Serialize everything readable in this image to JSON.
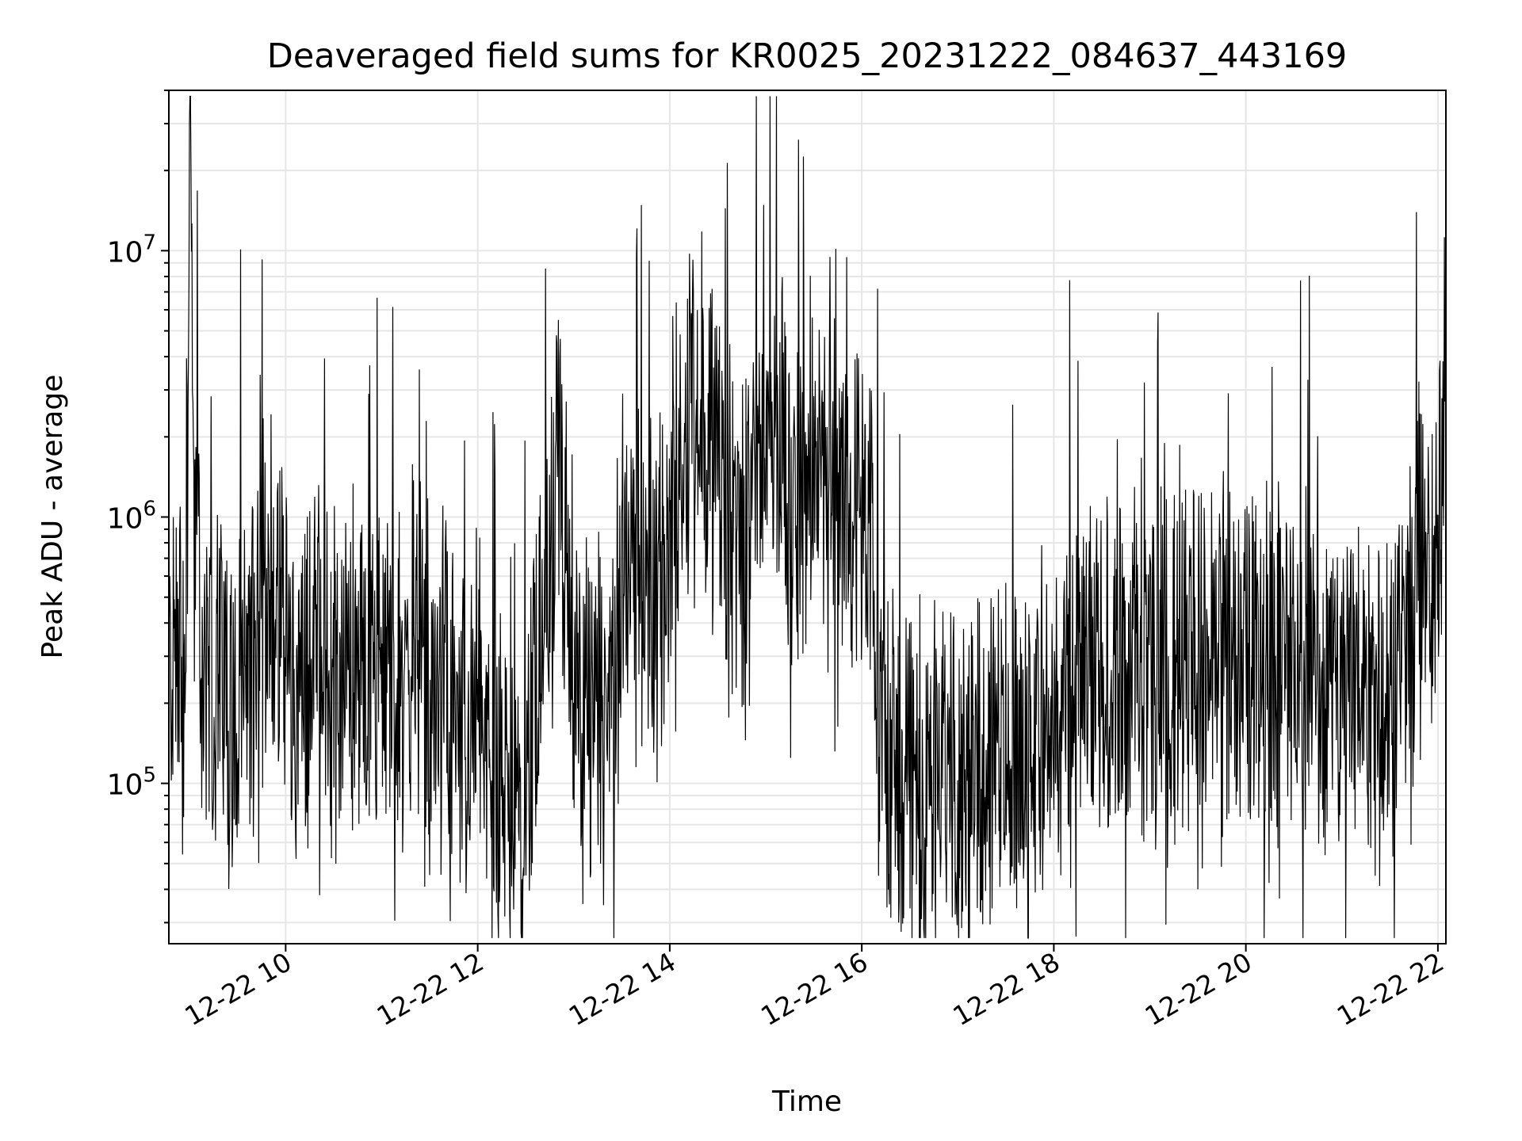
{
  "chart_data": {
    "type": "line",
    "title": "Deaveraged field sums for KR0025_20231222_084637_443169",
    "xlabel": "Time",
    "ylabel": "Peak ADU - average",
    "yscale": "log",
    "x_range": [
      "2023-12-22 08:47",
      "2023-12-22 22:05"
    ],
    "ylim": [
      25000,
      40000000
    ],
    "grid": true,
    "grid_minor_y": true,
    "line_color": "#000000",
    "x_ticks": [
      {
        "label": "12-22 10",
        "time": "2023-12-22 10:00"
      },
      {
        "label": "12-22 12",
        "time": "2023-12-22 12:00"
      },
      {
        "label": "12-22 14",
        "time": "2023-12-22 14:00"
      },
      {
        "label": "12-22 16",
        "time": "2023-12-22 16:00"
      },
      {
        "label": "12-22 18",
        "time": "2023-12-22 18:00"
      },
      {
        "label": "12-22 20",
        "time": "2023-12-22 20:00"
      },
      {
        "label": "12-22 22",
        "time": "2023-12-22 22:00"
      }
    ],
    "y_ticks": [
      {
        "base": "10",
        "exp": "5",
        "value": 100000
      },
      {
        "base": "10",
        "exp": "6",
        "value": 1000000
      },
      {
        "base": "10",
        "exp": "7",
        "value": 10000000
      }
    ],
    "series": [
      {
        "style": "dense noisy line (approximate envelope of the depicted trace)",
        "points": [
          [
            "2023-12-22 08:47",
            250000
          ],
          [
            "2023-12-22 08:53",
            400000
          ],
          [
            "2023-12-22 08:57",
            160000
          ],
          [
            "2023-12-22 09:00",
            30000000
          ],
          [
            "2023-12-22 09:03",
            800000
          ],
          [
            "2023-12-22 09:10",
            200000
          ],
          [
            "2023-12-22 09:20",
            300000
          ],
          [
            "2023-12-22 09:30",
            150000
          ],
          [
            "2023-12-22 09:40",
            350000
          ],
          [
            "2023-12-22 09:50",
            600000
          ],
          [
            "2023-12-22 10:00",
            250000
          ],
          [
            "2023-12-22 10:10",
            200000
          ],
          [
            "2023-12-22 10:20",
            400000
          ],
          [
            "2023-12-22 10:30",
            180000
          ],
          [
            "2023-12-22 10:40",
            300000
          ],
          [
            "2023-12-22 10:50",
            220000
          ],
          [
            "2023-12-22 11:00",
            280000
          ],
          [
            "2023-12-22 11:10",
            200000
          ],
          [
            "2023-12-22 11:20",
            300000
          ],
          [
            "2023-12-22 11:30",
            150000
          ],
          [
            "2023-12-22 11:40",
            250000
          ],
          [
            "2023-12-22 11:50",
            130000
          ],
          [
            "2023-12-22 12:00",
            200000
          ],
          [
            "2023-12-22 12:10",
            100000
          ],
          [
            "2023-12-22 12:20",
            80000
          ],
          [
            "2023-12-22 12:30",
            90000
          ],
          [
            "2023-12-22 12:36",
            300000
          ],
          [
            "2023-12-22 12:45",
            700000
          ],
          [
            "2023-12-22 12:50",
            1800000
          ],
          [
            "2023-12-22 12:55",
            400000
          ],
          [
            "2023-12-22 13:05",
            150000
          ],
          [
            "2023-12-22 13:15",
            200000
          ],
          [
            "2023-12-22 13:20",
            120000
          ],
          [
            "2023-12-22 13:28",
            400000
          ],
          [
            "2023-12-22 13:35",
            1000000
          ],
          [
            "2023-12-22 13:45",
            600000
          ],
          [
            "2023-12-22 13:55",
            400000
          ],
          [
            "2023-12-22 14:05",
            1500000
          ],
          [
            "2023-12-22 14:15",
            3000000
          ],
          [
            "2023-12-22 14:25",
            2000000
          ],
          [
            "2023-12-22 14:35",
            1000000
          ],
          [
            "2023-12-22 14:45",
            700000
          ],
          [
            "2023-12-22 14:55",
            1500000
          ],
          [
            "2023-12-22 15:05",
            2500000
          ],
          [
            "2023-12-22 15:15",
            1200000
          ],
          [
            "2023-12-22 15:25",
            900000
          ],
          [
            "2023-12-22 15:35",
            2000000
          ],
          [
            "2023-12-22 15:45",
            1500000
          ],
          [
            "2023-12-22 15:55",
            1000000
          ],
          [
            "2023-12-22 16:05",
            700000
          ],
          [
            "2023-12-22 16:12",
            150000
          ],
          [
            "2023-12-22 16:25",
            120000
          ],
          [
            "2023-12-22 16:40",
            100000
          ],
          [
            "2023-12-22 16:55",
            130000
          ],
          [
            "2023-12-22 17:10",
            110000
          ],
          [
            "2023-12-22 17:25",
            140000
          ],
          [
            "2023-12-22 17:40",
            130000
          ],
          [
            "2023-12-22 17:55",
            160000
          ],
          [
            "2023-12-22 18:10",
            200000
          ],
          [
            "2023-12-22 18:25",
            250000
          ],
          [
            "2023-12-22 18:40",
            280000
          ],
          [
            "2023-12-22 18:55",
            260000
          ],
          [
            "2023-12-22 19:10",
            250000
          ],
          [
            "2023-12-22 19:25",
            300000
          ],
          [
            "2023-12-22 19:40",
            280000
          ],
          [
            "2023-12-22 19:55",
            320000
          ],
          [
            "2023-12-22 20:10",
            300000
          ],
          [
            "2023-12-22 20:25",
            280000
          ],
          [
            "2023-12-22 20:40",
            260000
          ],
          [
            "2023-12-22 20:55",
            240000
          ],
          [
            "2023-12-22 21:10",
            260000
          ],
          [
            "2023-12-22 21:25",
            240000
          ],
          [
            "2023-12-22 21:40",
            250000
          ],
          [
            "2023-12-22 21:48",
            700000
          ],
          [
            "2023-12-22 21:55",
            500000
          ],
          [
            "2023-12-22 22:00",
            550000
          ],
          [
            "2023-12-22 22:05",
            7500000
          ]
        ]
      }
    ]
  }
}
